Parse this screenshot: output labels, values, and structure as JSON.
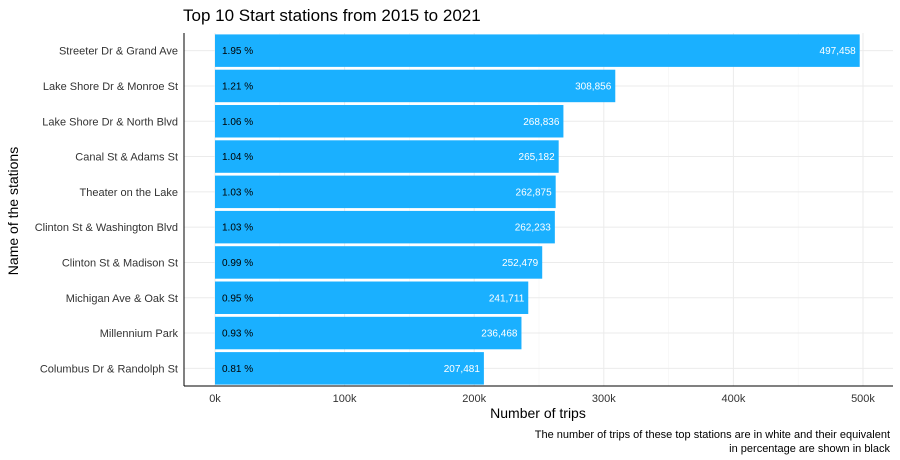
{
  "chart_data": {
    "type": "bar",
    "orientation": "horizontal",
    "title": "Top 10 Start stations from 2015 to 2021",
    "xlabel": "Number of trips",
    "ylabel": "Name of the stations",
    "xlim": [
      0,
      520000
    ],
    "x_ticks": [
      0,
      100000,
      200000,
      300000,
      400000,
      500000
    ],
    "x_tick_labels": [
      "0k",
      "100k",
      "200k",
      "300k",
      "400k",
      "500k"
    ],
    "grid": true,
    "bar_color": "#1AB0FF",
    "categories": [
      "Streeter Dr & Grand Ave",
      "Lake Shore Dr & Monroe St",
      "Lake Shore Dr & North Blvd",
      "Canal St & Adams St",
      "Theater on the Lake",
      "Clinton St & Washington Blvd",
      "Clinton St & Madison St",
      "Michigan Ave & Oak St",
      "Millennium Park",
      "Columbus Dr & Randolph St"
    ],
    "values": [
      497458,
      308856,
      268836,
      265182,
      262875,
      262233,
      252479,
      241711,
      236468,
      207481
    ],
    "value_labels": [
      "497,458",
      "308,856",
      "268,836",
      "265,182",
      "262,875",
      "262,233",
      "252,479",
      "241,711",
      "236,468",
      "207,481"
    ],
    "percent_labels": [
      "1.95 %",
      "1.21 %",
      "1.06 %",
      "1.04 %",
      "1.03 %",
      "1.03 %",
      "0.99 %",
      "0.95 %",
      "0.93 %",
      "0.81 %"
    ],
    "caption_lines": [
      "The number of trips of these top stations are in white and their equivalent",
      "in percentage are shown in black"
    ]
  }
}
